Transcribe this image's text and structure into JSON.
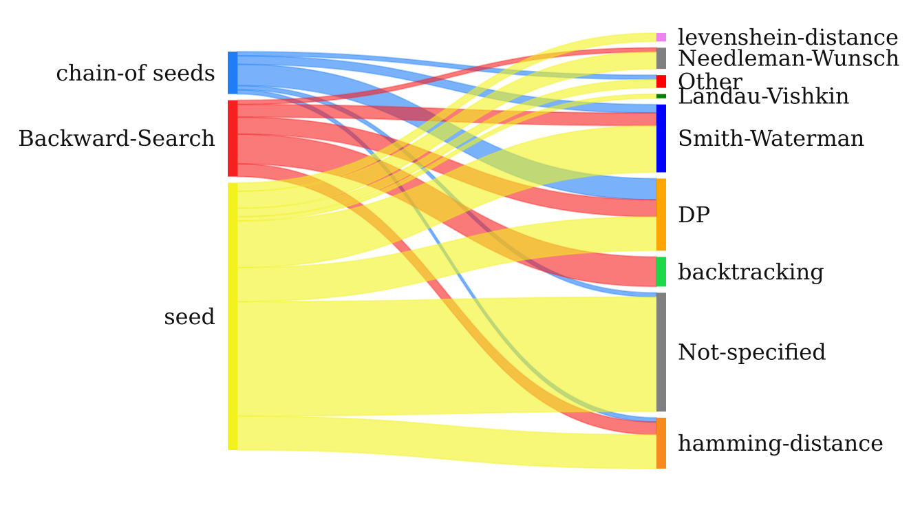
{
  "chart_data": {
    "type": "sankey",
    "title": "",
    "sources": [
      {
        "id": "chain",
        "label": "chain-of seeds",
        "color": "#1f7ef7"
      },
      {
        "id": "backward",
        "label": "Backward-Search",
        "color": "#f72020"
      },
      {
        "id": "seed",
        "label": "seed",
        "color": "#f2f21e"
      }
    ],
    "targets": [
      {
        "id": "lev",
        "label": "levenshein-distance",
        "color": "#ee82ee"
      },
      {
        "id": "nw",
        "label": "Needleman-Wunsch",
        "color": "#808080"
      },
      {
        "id": "other",
        "label": "Other",
        "color": "#ff0000"
      },
      {
        "id": "lv",
        "label": "Landau-Vishkin",
        "color": "#008000"
      },
      {
        "id": "sw",
        "label": "Smith-Waterman",
        "color": "#0000ff"
      },
      {
        "id": "dp",
        "label": "DP",
        "color": "#ffa500"
      },
      {
        "id": "bt",
        "label": "backtracking",
        "color": "#1ed84a"
      },
      {
        "id": "ns",
        "label": "Not-specified",
        "color": "#808080"
      },
      {
        "id": "hd",
        "label": "hamming-distance",
        "color": "#f78a1e"
      }
    ],
    "links": [
      {
        "source": "chain",
        "target": "other",
        "value": 1
      },
      {
        "source": "chain",
        "target": "sw",
        "value": 2
      },
      {
        "source": "chain",
        "target": "dp",
        "value": 5
      },
      {
        "source": "chain",
        "target": "ns",
        "value": 1
      },
      {
        "source": "chain",
        "target": "hd",
        "value": 1
      },
      {
        "source": "backward",
        "target": "nw",
        "value": 1
      },
      {
        "source": "backward",
        "target": "sw",
        "value": 3
      },
      {
        "source": "backward",
        "target": "dp",
        "value": 4
      },
      {
        "source": "backward",
        "target": "bt",
        "value": 7
      },
      {
        "source": "backward",
        "target": "hd",
        "value": 3
      },
      {
        "source": "seed",
        "target": "lev",
        "value": 2
      },
      {
        "source": "seed",
        "target": "nw",
        "value": 4
      },
      {
        "source": "seed",
        "target": "other",
        "value": 2
      },
      {
        "source": "seed",
        "target": "lv",
        "value": 1
      },
      {
        "source": "seed",
        "target": "sw",
        "value": 11
      },
      {
        "source": "seed",
        "target": "dp",
        "value": 8
      },
      {
        "source": "seed",
        "target": "ns",
        "value": 27
      },
      {
        "source": "seed",
        "target": "hd",
        "value": 8
      }
    ]
  }
}
